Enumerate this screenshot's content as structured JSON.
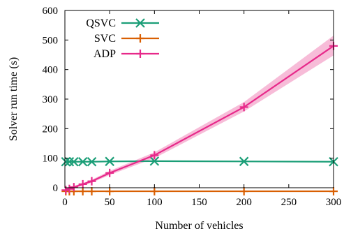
{
  "chart_data": {
    "type": "line",
    "title": "",
    "xlabel": "Number of vehicles",
    "ylabel": "Solver run time (s)",
    "xlim": [
      0,
      300
    ],
    "ylim": [
      0,
      600
    ],
    "xticks": [
      0,
      50,
      100,
      150,
      200,
      250,
      300
    ],
    "yticks": [
      0,
      100,
      200,
      300,
      400,
      500,
      600
    ],
    "grid": false,
    "legend_position": "top-left",
    "series": [
      {
        "name": "QSVC",
        "color": "#1b9e77",
        "marker": "x",
        "x": [
          1,
          5,
          10,
          20,
          30,
          50,
          100,
          200,
          300
        ],
        "y": [
          88,
          88,
          88,
          88,
          88,
          89,
          90,
          89,
          88
        ]
      },
      {
        "name": "SVC",
        "color": "#d95f02",
        "marker": "+",
        "x": [
          1,
          5,
          10,
          20,
          30,
          50,
          100,
          200,
          300
        ],
        "y": [
          -12,
          -12,
          -12,
          -12,
          -12,
          -12,
          -12,
          -12,
          -12
        ]
      },
      {
        "name": "ADP",
        "color": "#e7298a",
        "band_color": "#f4a6cb",
        "marker": "+",
        "x": [
          1,
          5,
          10,
          20,
          30,
          50,
          100,
          200,
          300
        ],
        "y": [
          -8,
          -4,
          2,
          12,
          22,
          50,
          110,
          273,
          480
        ],
        "y_lower": [
          -10,
          -7,
          -2,
          8,
          17,
          43,
          100,
          258,
          448
        ],
        "y_upper": [
          -6,
          -1,
          6,
          16,
          27,
          57,
          120,
          290,
          515
        ]
      }
    ]
  }
}
